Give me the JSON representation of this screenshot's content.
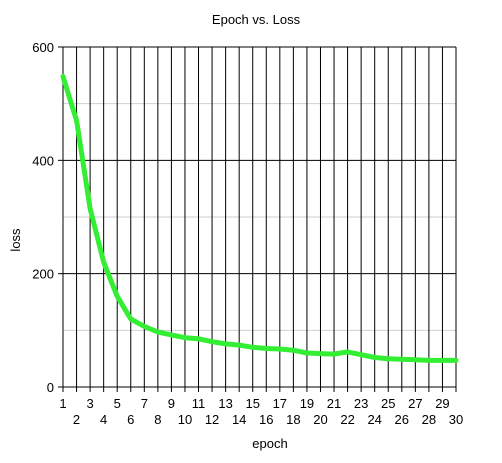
{
  "chart_data": {
    "type": "line",
    "title": "Epoch vs. Loss",
    "xlabel": "epoch",
    "ylabel": "loss",
    "xlim": [
      1,
      30
    ],
    "ylim": [
      0,
      600
    ],
    "y_ticks": [
      0,
      200,
      400,
      600
    ],
    "y_minor_grid": [
      100,
      300,
      500
    ],
    "x_ticks_top_row": [
      1,
      3,
      5,
      7,
      9,
      11,
      13,
      15,
      17,
      19,
      21,
      23,
      25,
      27,
      29
    ],
    "x_ticks_bottom_row": [
      2,
      4,
      6,
      8,
      10,
      12,
      14,
      16,
      18,
      20,
      22,
      24,
      26,
      28,
      30
    ],
    "grid": true,
    "series": [
      {
        "color": "#33ee33",
        "x": [
          1,
          2,
          3,
          4,
          5,
          6,
          7,
          8,
          9,
          10,
          11,
          12,
          13,
          14,
          15,
          16,
          17,
          18,
          19,
          20,
          21,
          22,
          23,
          24,
          25,
          26,
          27,
          28,
          29,
          30
        ],
        "y": [
          548,
          470,
          315,
          220,
          160,
          120,
          107,
          97,
          92,
          87,
          85,
          80,
          76,
          74,
          70,
          68,
          67,
          65,
          60,
          59,
          58,
          62,
          57,
          52,
          50,
          49,
          48,
          47,
          47,
          47
        ]
      }
    ]
  }
}
